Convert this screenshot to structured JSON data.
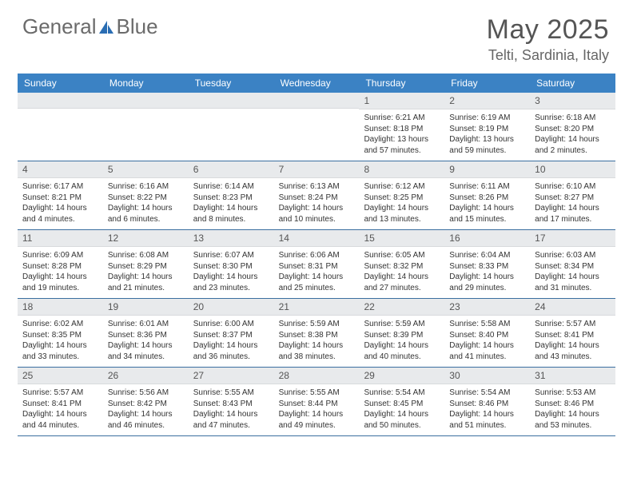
{
  "brand": {
    "word1": "General",
    "word2": "Blue",
    "logo_color": "#2a6db3"
  },
  "header": {
    "month_title": "May 2025",
    "location": "Telti, Sardinia, Italy"
  },
  "calendar": {
    "type": "table",
    "dow_bg": "#3b82c4",
    "daynum_bg": "#e8eaec",
    "rule_color": "#3b6fa0",
    "columns": [
      "Sunday",
      "Monday",
      "Tuesday",
      "Wednesday",
      "Thursday",
      "Friday",
      "Saturday"
    ],
    "weeks": [
      [
        {
          "n": "",
          "sr": "",
          "ss": "",
          "dl": ""
        },
        {
          "n": "",
          "sr": "",
          "ss": "",
          "dl": ""
        },
        {
          "n": "",
          "sr": "",
          "ss": "",
          "dl": ""
        },
        {
          "n": "",
          "sr": "",
          "ss": "",
          "dl": ""
        },
        {
          "n": "1",
          "sr": "6:21 AM",
          "ss": "8:18 PM",
          "dl": "13 hours and 57 minutes."
        },
        {
          "n": "2",
          "sr": "6:19 AM",
          "ss": "8:19 PM",
          "dl": "13 hours and 59 minutes."
        },
        {
          "n": "3",
          "sr": "6:18 AM",
          "ss": "8:20 PM",
          "dl": "14 hours and 2 minutes."
        }
      ],
      [
        {
          "n": "4",
          "sr": "6:17 AM",
          "ss": "8:21 PM",
          "dl": "14 hours and 4 minutes."
        },
        {
          "n": "5",
          "sr": "6:16 AM",
          "ss": "8:22 PM",
          "dl": "14 hours and 6 minutes."
        },
        {
          "n": "6",
          "sr": "6:14 AM",
          "ss": "8:23 PM",
          "dl": "14 hours and 8 minutes."
        },
        {
          "n": "7",
          "sr": "6:13 AM",
          "ss": "8:24 PM",
          "dl": "14 hours and 10 minutes."
        },
        {
          "n": "8",
          "sr": "6:12 AM",
          "ss": "8:25 PM",
          "dl": "14 hours and 13 minutes."
        },
        {
          "n": "9",
          "sr": "6:11 AM",
          "ss": "8:26 PM",
          "dl": "14 hours and 15 minutes."
        },
        {
          "n": "10",
          "sr": "6:10 AM",
          "ss": "8:27 PM",
          "dl": "14 hours and 17 minutes."
        }
      ],
      [
        {
          "n": "11",
          "sr": "6:09 AM",
          "ss": "8:28 PM",
          "dl": "14 hours and 19 minutes."
        },
        {
          "n": "12",
          "sr": "6:08 AM",
          "ss": "8:29 PM",
          "dl": "14 hours and 21 minutes."
        },
        {
          "n": "13",
          "sr": "6:07 AM",
          "ss": "8:30 PM",
          "dl": "14 hours and 23 minutes."
        },
        {
          "n": "14",
          "sr": "6:06 AM",
          "ss": "8:31 PM",
          "dl": "14 hours and 25 minutes."
        },
        {
          "n": "15",
          "sr": "6:05 AM",
          "ss": "8:32 PM",
          "dl": "14 hours and 27 minutes."
        },
        {
          "n": "16",
          "sr": "6:04 AM",
          "ss": "8:33 PM",
          "dl": "14 hours and 29 minutes."
        },
        {
          "n": "17",
          "sr": "6:03 AM",
          "ss": "8:34 PM",
          "dl": "14 hours and 31 minutes."
        }
      ],
      [
        {
          "n": "18",
          "sr": "6:02 AM",
          "ss": "8:35 PM",
          "dl": "14 hours and 33 minutes."
        },
        {
          "n": "19",
          "sr": "6:01 AM",
          "ss": "8:36 PM",
          "dl": "14 hours and 34 minutes."
        },
        {
          "n": "20",
          "sr": "6:00 AM",
          "ss": "8:37 PM",
          "dl": "14 hours and 36 minutes."
        },
        {
          "n": "21",
          "sr": "5:59 AM",
          "ss": "8:38 PM",
          "dl": "14 hours and 38 minutes."
        },
        {
          "n": "22",
          "sr": "5:59 AM",
          "ss": "8:39 PM",
          "dl": "14 hours and 40 minutes."
        },
        {
          "n": "23",
          "sr": "5:58 AM",
          "ss": "8:40 PM",
          "dl": "14 hours and 41 minutes."
        },
        {
          "n": "24",
          "sr": "5:57 AM",
          "ss": "8:41 PM",
          "dl": "14 hours and 43 minutes."
        }
      ],
      [
        {
          "n": "25",
          "sr": "5:57 AM",
          "ss": "8:41 PM",
          "dl": "14 hours and 44 minutes."
        },
        {
          "n": "26",
          "sr": "5:56 AM",
          "ss": "8:42 PM",
          "dl": "14 hours and 46 minutes."
        },
        {
          "n": "27",
          "sr": "5:55 AM",
          "ss": "8:43 PM",
          "dl": "14 hours and 47 minutes."
        },
        {
          "n": "28",
          "sr": "5:55 AM",
          "ss": "8:44 PM",
          "dl": "14 hours and 49 minutes."
        },
        {
          "n": "29",
          "sr": "5:54 AM",
          "ss": "8:45 PM",
          "dl": "14 hours and 50 minutes."
        },
        {
          "n": "30",
          "sr": "5:54 AM",
          "ss": "8:46 PM",
          "dl": "14 hours and 51 minutes."
        },
        {
          "n": "31",
          "sr": "5:53 AM",
          "ss": "8:46 PM",
          "dl": "14 hours and 53 minutes."
        }
      ]
    ]
  },
  "labels": {
    "sunrise": "Sunrise: ",
    "sunset": "Sunset: ",
    "daylight": "Daylight: "
  }
}
